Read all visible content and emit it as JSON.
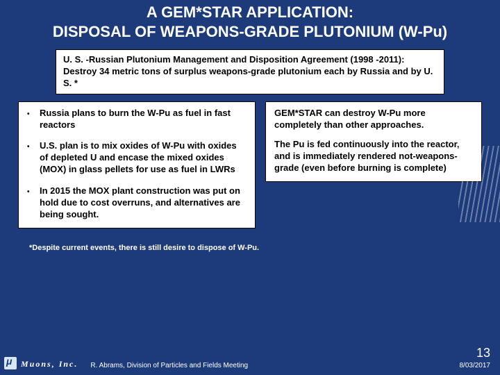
{
  "title": "A GEM*STAR APPLICATION:\nDISPOSAL OF WEAPONS-GRADE PLUTONIUM (W-Pu)",
  "intro": "U. S. -Russian Plutonium Management and Disposition Agreement (1998 -2011): Destroy 34 metric tons of surplus weapons-grade plutonium each by Russia and by U. S. *",
  "bullets": [
    "Russia plans to burn the W-Pu as fuel in fast reactors",
    "U.S. plan is to mix oxides of W-Pu with oxides of depleted U and encase the mixed oxides (MOX) in glass pellets for use as fuel in LWRs",
    "In 2015 the MOX plant construction was put on hold due to cost overruns, and alternatives are being sought."
  ],
  "right_paras": [
    "GEM*STAR can destroy W-Pu more completely than other approaches.",
    "The Pu is fed continuously into the reactor, and is immediately rendered not-weapons-grade (even before burning is complete)"
  ],
  "footnote": "*Despite current events, there is still desire to dispose of W-Pu.",
  "company": "Muons, Inc.",
  "presenter": "R. Abrams, Division of Particles and Fields Meeting",
  "page_number": "13",
  "date": "8/03/2017"
}
